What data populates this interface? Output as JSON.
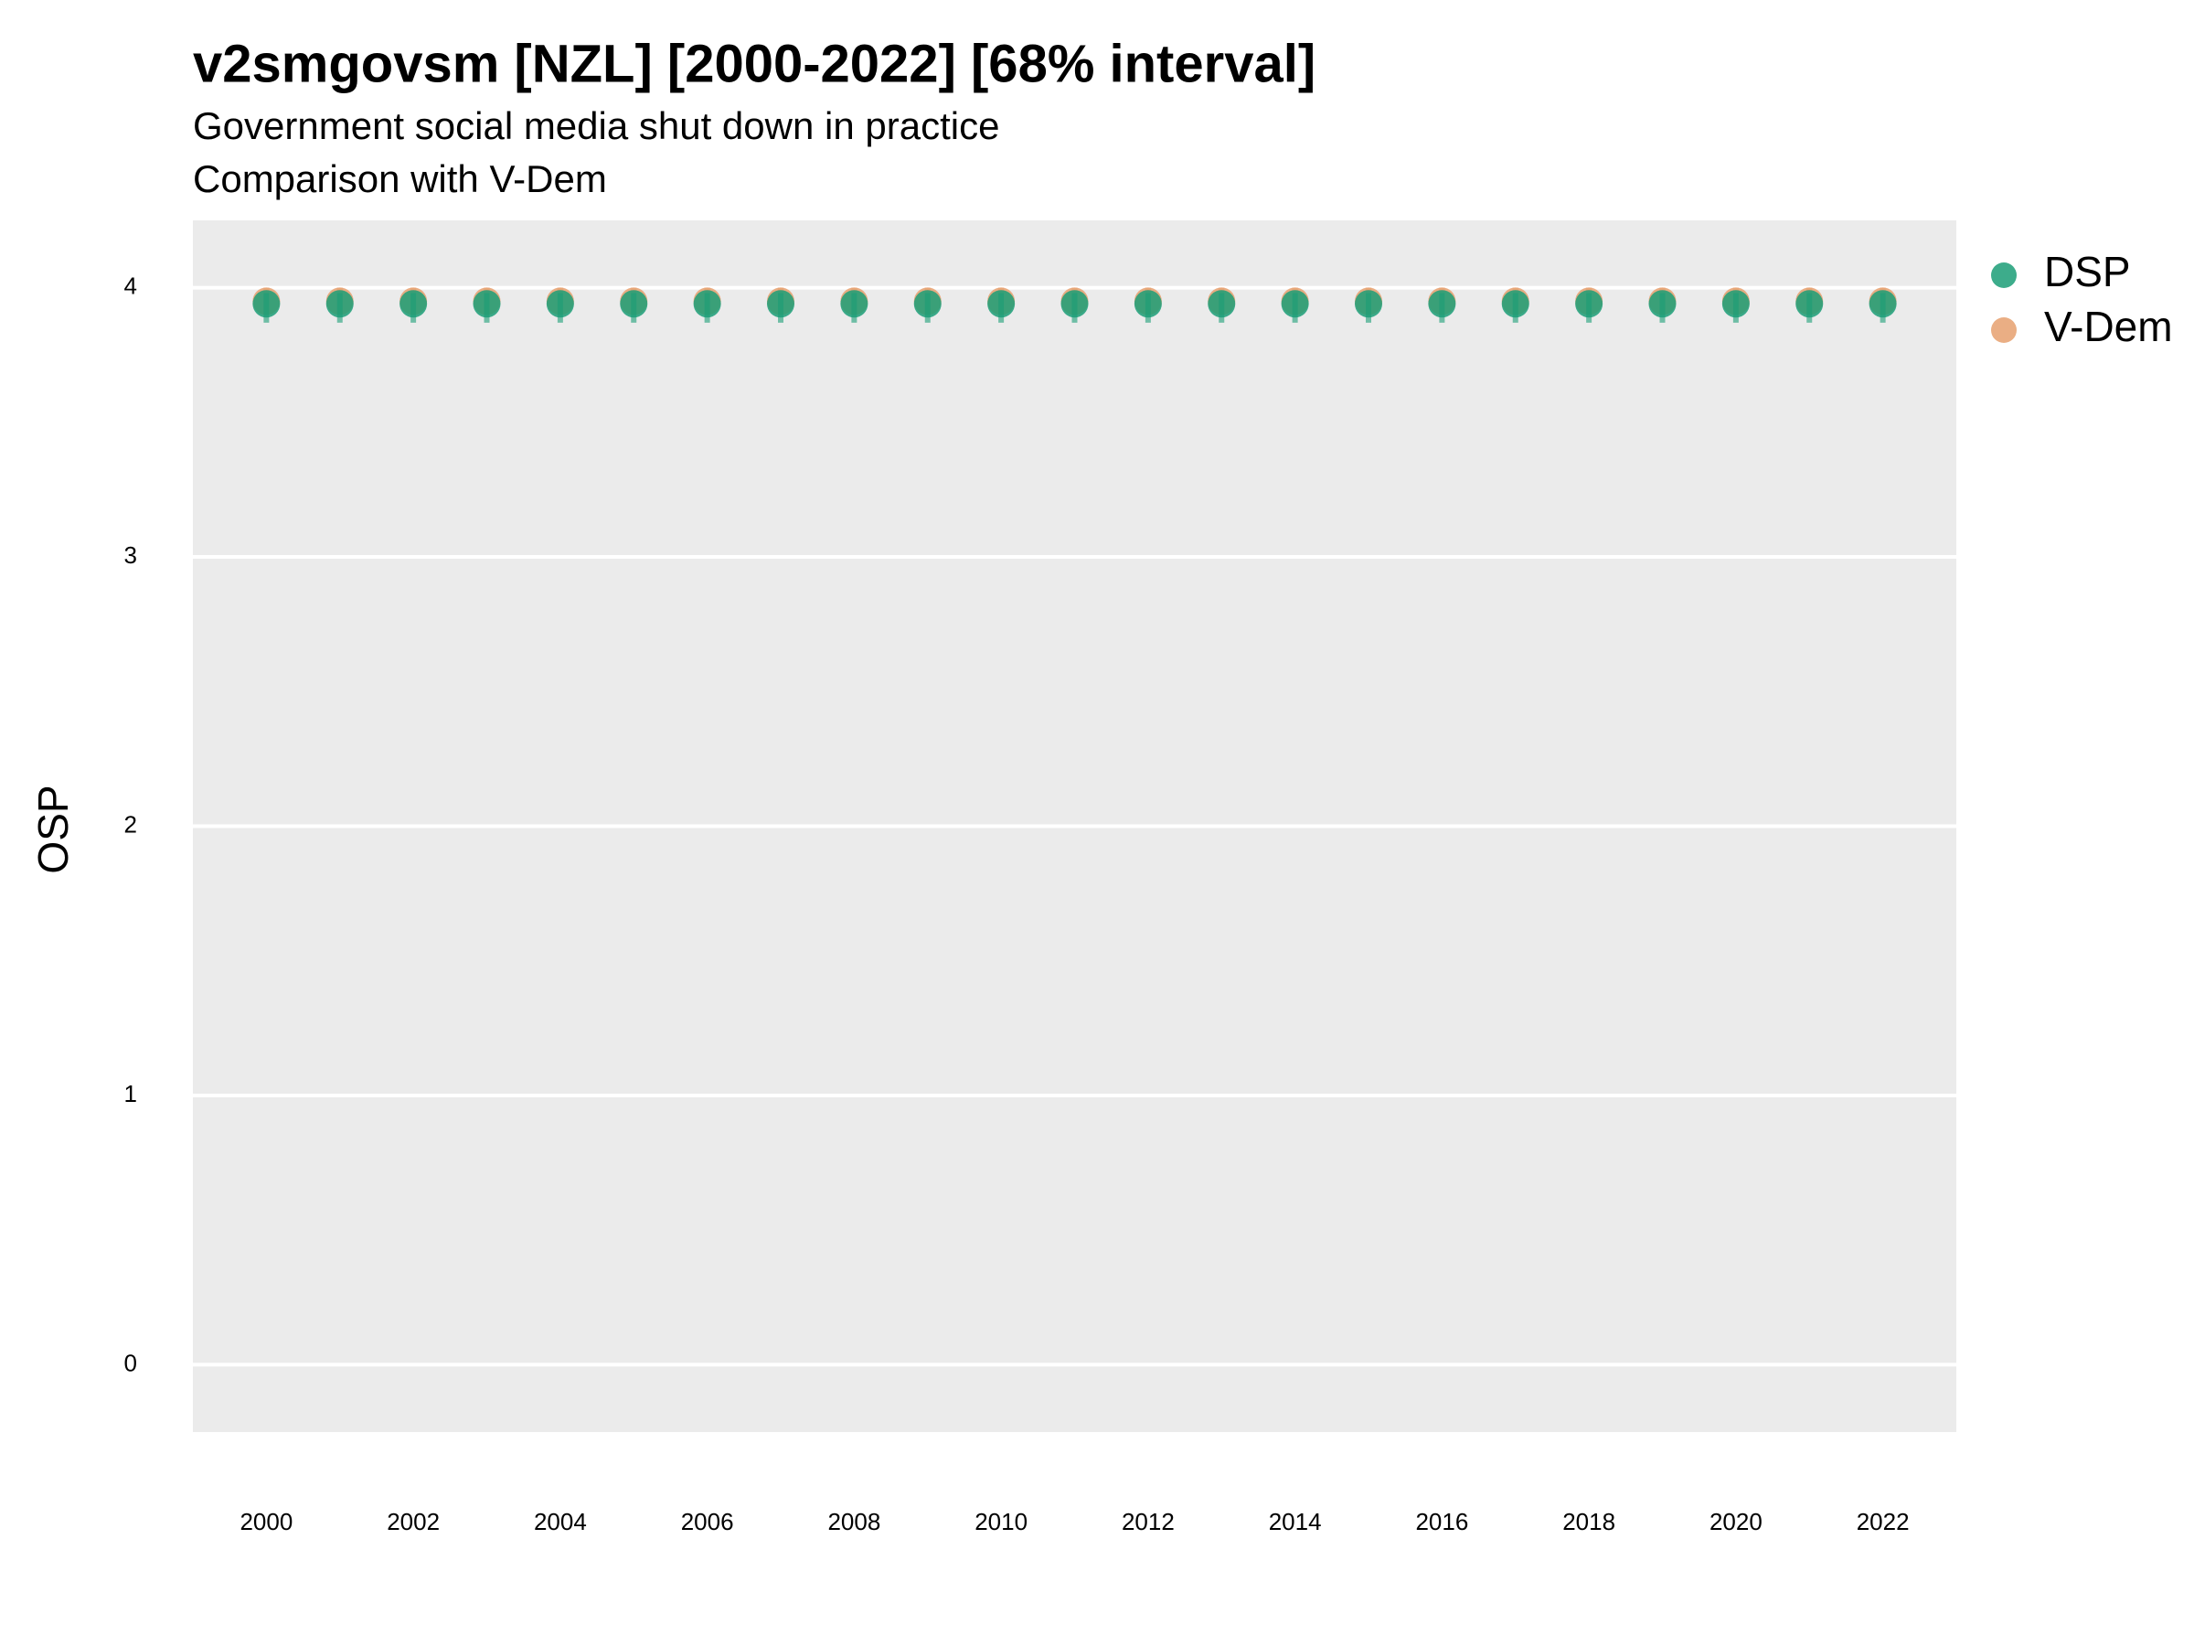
{
  "chart_data": {
    "type": "scatter",
    "title": "v2smgovsm [NZL] [2000-2022] [68% interval]",
    "subtitle": "Government social media shut down in practice",
    "subtitle2": "Comparison with V-Dem",
    "y_label": "OSP",
    "x": [
      2000,
      2001,
      2002,
      2003,
      2004,
      2005,
      2006,
      2007,
      2008,
      2009,
      2010,
      2011,
      2012,
      2013,
      2014,
      2015,
      2016,
      2017,
      2018,
      2019,
      2020,
      2021,
      2022
    ],
    "series": [
      {
        "name": "DSP",
        "color": "#1b9e77",
        "values": [
          3.94,
          3.94,
          3.94,
          3.94,
          3.94,
          3.94,
          3.94,
          3.94,
          3.94,
          3.94,
          3.94,
          3.94,
          3.94,
          3.94,
          3.94,
          3.94,
          3.94,
          3.94,
          3.94,
          3.94,
          3.94,
          3.94,
          3.94
        ],
        "lower": [
          3.87,
          3.87,
          3.87,
          3.87,
          3.87,
          3.87,
          3.87,
          3.87,
          3.87,
          3.87,
          3.87,
          3.87,
          3.87,
          3.87,
          3.87,
          3.87,
          3.87,
          3.87,
          3.87,
          3.87,
          3.87,
          3.87,
          3.87
        ],
        "upper": [
          3.98,
          3.98,
          3.98,
          3.98,
          3.98,
          3.98,
          3.98,
          3.98,
          3.98,
          3.98,
          3.98,
          3.98,
          3.98,
          3.98,
          3.98,
          3.98,
          3.98,
          3.98,
          3.98,
          3.98,
          3.98,
          3.98,
          3.98
        ]
      },
      {
        "name": "V-Dem",
        "color": "#e6a06e",
        "values": [
          3.95,
          3.95,
          3.95,
          3.95,
          3.95,
          3.95,
          3.95,
          3.95,
          3.95,
          3.95,
          3.95,
          3.95,
          3.95,
          3.95,
          3.95,
          3.95,
          3.95,
          3.95,
          3.95,
          3.95,
          3.95,
          3.95,
          3.95
        ],
        "lower": [
          3.9,
          3.9,
          3.9,
          3.9,
          3.9,
          3.9,
          3.9,
          3.9,
          3.9,
          3.9,
          3.9,
          3.9,
          3.9,
          3.9,
          3.9,
          3.9,
          3.9,
          3.9,
          3.9,
          3.9,
          3.9,
          3.9,
          3.9
        ],
        "upper": [
          4.0,
          4.0,
          4.0,
          4.0,
          4.0,
          4.0,
          4.0,
          4.0,
          4.0,
          4.0,
          4.0,
          4.0,
          4.0,
          4.0,
          4.0,
          4.0,
          4.0,
          4.0,
          4.0,
          4.0,
          4.0,
          4.0,
          4.0
        ]
      }
    ],
    "xlim": [
      1999,
      2023
    ],
    "xticks": [
      2000,
      2002,
      2004,
      2006,
      2008,
      2010,
      2012,
      2014,
      2016,
      2018,
      2020,
      2022
    ],
    "ylim": [
      -0.25,
      4.25
    ],
    "yticks": [
      0,
      1,
      2,
      3,
      4
    ],
    "grid": true,
    "legend": "right"
  }
}
